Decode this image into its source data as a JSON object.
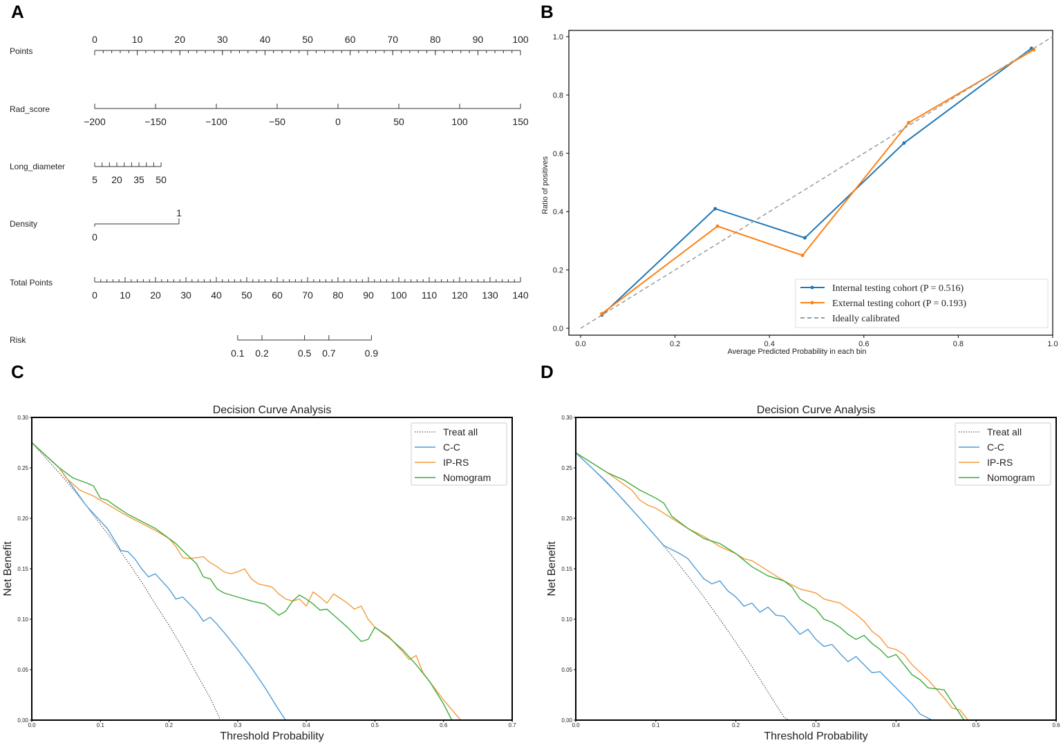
{
  "panels": {
    "a": "A",
    "b": "B",
    "c": "C",
    "d": "D"
  },
  "chart_data": [
    {
      "id": "A",
      "type": "nomogram",
      "rows": [
        {
          "name": "Points",
          "ticks": [
            {
              "label": "0",
              "v": 0
            },
            {
              "label": "10",
              "v": 10
            },
            {
              "label": "20",
              "v": 20
            },
            {
              "label": "30",
              "v": 30
            },
            {
              "label": "40",
              "v": 40
            },
            {
              "label": "50",
              "v": 50
            },
            {
              "label": "60",
              "v": 60
            },
            {
              "label": "70",
              "v": 70
            },
            {
              "label": "80",
              "v": 80
            },
            {
              "label": "90",
              "v": 90
            },
            {
              "label": "100",
              "v": 100
            }
          ],
          "range": [
            0,
            100
          ],
          "minor": 2,
          "labels_above": true
        },
        {
          "name": "Rad_score",
          "ticks": [
            {
              "label": "−200",
              "v": -200
            },
            {
              "label": "−150",
              "v": -150
            },
            {
              "label": "−100",
              "v": -100
            },
            {
              "label": "−50",
              "v": -50
            },
            {
              "label": "0",
              "v": 0
            },
            {
              "label": "50",
              "v": 50
            },
            {
              "label": "100",
              "v": 100
            },
            {
              "label": "150",
              "v": 150
            }
          ],
          "range": [
            -200,
            150
          ],
          "points_range": [
            0,
            100
          ]
        },
        {
          "name": "Long_diameter",
          "ticks": [
            {
              "label": "5",
              "v": 5
            },
            {
              "label": "20",
              "v": 20
            },
            {
              "label": "35",
              "v": 35
            },
            {
              "label": "50",
              "v": 50
            }
          ],
          "minor_values": [
            5,
            10,
            15,
            20,
            25,
            30,
            35,
            40,
            45,
            50
          ],
          "range": [
            5,
            50
          ],
          "points_range": [
            0,
            15.6
          ]
        },
        {
          "name": "Density",
          "ticks": [
            {
              "label": "0",
              "v": 0,
              "below": true
            },
            {
              "label": "1",
              "v": 1,
              "below": false
            }
          ],
          "range": [
            0,
            1
          ],
          "points_range": [
            0,
            19.8
          ]
        },
        {
          "name": "Total Points",
          "ticks": [
            {
              "label": "0",
              "v": 0
            },
            {
              "label": "10",
              "v": 10
            },
            {
              "label": "20",
              "v": 20
            },
            {
              "label": "30",
              "v": 30
            },
            {
              "label": "40",
              "v": 40
            },
            {
              "label": "50",
              "v": 50
            },
            {
              "label": "60",
              "v": 60
            },
            {
              "label": "70",
              "v": 70
            },
            {
              "label": "80",
              "v": 80
            },
            {
              "label": "90",
              "v": 90
            },
            {
              "label": "100",
              "v": 100
            },
            {
              "label": "110",
              "v": 110
            },
            {
              "label": "120",
              "v": 120
            },
            {
              "label": "130",
              "v": 130
            },
            {
              "label": "140",
              "v": 140
            }
          ],
          "range": [
            0,
            140
          ],
          "minor": 2
        },
        {
          "name": "Risk",
          "ticks": [
            {
              "label": "0.1",
              "v": 47
            },
            {
              "label": "0.2",
              "v": 55
            },
            {
              "label": "0.5",
              "v": 69
            },
            {
              "label": "0.7",
              "v": 77
            },
            {
              "label": "0.9",
              "v": 91
            }
          ],
          "range": [
            0,
            140
          ],
          "on_total_scale": true
        }
      ]
    },
    {
      "id": "B",
      "type": "line",
      "title": "",
      "xlabel": "Average Predicted Probability in each bin",
      "ylabel": "Ratio of positives",
      "xlim": [
        0,
        1.0
      ],
      "ylim": [
        0,
        1.0
      ],
      "xticks": [
        "0.0",
        "0.2",
        "0.4",
        "0.6",
        "0.8",
        "1.0"
      ],
      "yticks": [
        "0.0",
        "0.2",
        "0.4",
        "0.6",
        "0.8",
        "1.0"
      ],
      "legend_position": "lower-right",
      "series": [
        {
          "name": "Internal testing cohort (P = 0.516)",
          "color": "#1f77b4",
          "marker": true,
          "x": [
            0.045,
            0.285,
            0.475,
            0.685,
            0.955
          ],
          "y": [
            0.045,
            0.41,
            0.31,
            0.635,
            0.96
          ]
        },
        {
          "name": "External testing cohort (P = 0.193)",
          "color": "#ff7f0e",
          "marker": true,
          "x": [
            0.045,
            0.29,
            0.47,
            0.695,
            0.96
          ],
          "y": [
            0.05,
            0.35,
            0.25,
            0.705,
            0.955
          ]
        },
        {
          "name": "Ideally calibrated",
          "color": "#999999",
          "dashed": true,
          "x": [
            0,
            1
          ],
          "y": [
            0,
            1
          ]
        }
      ]
    },
    {
      "id": "C",
      "type": "line",
      "title": "Decision Curve Analysis",
      "xlabel": "Threshold Probability",
      "ylabel": "Net Benefit",
      "xlim": [
        0,
        0.7
      ],
      "ylim": [
        0,
        0.3
      ],
      "xticks": [
        "0.0",
        "0.1",
        "0.2",
        "0.3",
        "0.4",
        "0.5",
        "0.6",
        "0.7"
      ],
      "yticks": [
        "0.00",
        "0.05",
        "0.10",
        "0.15",
        "0.20",
        "0.25",
        "0.30"
      ],
      "legend_position": "top-right",
      "series": [
        {
          "name": "Treat all",
          "color": "#333333",
          "dotted": true,
          "x": [
            0,
            0.02,
            0.04,
            0.06,
            0.08,
            0.1,
            0.12,
            0.14,
            0.16,
            0.18,
            0.2,
            0.22,
            0.24,
            0.26,
            0.275
          ],
          "y": [
            0.275,
            0.26,
            0.245,
            0.229,
            0.212,
            0.194,
            0.176,
            0.157,
            0.137,
            0.115,
            0.094,
            0.071,
            0.046,
            0.022,
            0.0
          ]
        },
        {
          "name": "C-C",
          "color": "#4c9bd6",
          "x": [
            0,
            0.04,
            0.08,
            0.11,
            0.13,
            0.14,
            0.15,
            0.16,
            0.17,
            0.18,
            0.2,
            0.21,
            0.22,
            0.24,
            0.25,
            0.26,
            0.27,
            0.28,
            0.3,
            0.32,
            0.34,
            0.36,
            0.37
          ],
          "y": [
            0.275,
            0.25,
            0.212,
            0.19,
            0.168,
            0.167,
            0.16,
            0.15,
            0.142,
            0.145,
            0.13,
            0.12,
            0.122,
            0.108,
            0.098,
            0.102,
            0.095,
            0.087,
            0.07,
            0.052,
            0.032,
            0.01,
            0.0
          ]
        },
        {
          "name": "IP-RS",
          "color": "#f39a3a",
          "x": [
            0,
            0.04,
            0.05,
            0.07,
            0.09,
            0.1,
            0.12,
            0.14,
            0.16,
            0.18,
            0.2,
            0.21,
            0.22,
            0.23,
            0.25,
            0.26,
            0.27,
            0.28,
            0.29,
            0.3,
            0.31,
            0.32,
            0.33,
            0.35,
            0.36,
            0.37,
            0.38,
            0.39,
            0.4,
            0.41,
            0.42,
            0.43,
            0.44,
            0.46,
            0.47,
            0.48,
            0.49,
            0.5,
            0.52,
            0.54,
            0.55,
            0.56,
            0.57,
            0.6,
            0.625
          ],
          "y": [
            0.275,
            0.25,
            0.24,
            0.228,
            0.222,
            0.218,
            0.21,
            0.202,
            0.195,
            0.188,
            0.18,
            0.172,
            0.161,
            0.16,
            0.162,
            0.156,
            0.152,
            0.147,
            0.145,
            0.147,
            0.15,
            0.14,
            0.135,
            0.132,
            0.125,
            0.12,
            0.118,
            0.12,
            0.113,
            0.127,
            0.122,
            0.116,
            0.125,
            0.116,
            0.11,
            0.113,
            0.1,
            0.092,
            0.083,
            0.068,
            0.06,
            0.064,
            0.047,
            0.02,
            0.0
          ]
        },
        {
          "name": "Nomogram",
          "color": "#3bab3b",
          "x": [
            0,
            0.04,
            0.06,
            0.08,
            0.09,
            0.1,
            0.11,
            0.12,
            0.14,
            0.16,
            0.18,
            0.2,
            0.21,
            0.22,
            0.24,
            0.25,
            0.26,
            0.27,
            0.28,
            0.3,
            0.32,
            0.34,
            0.36,
            0.37,
            0.38,
            0.39,
            0.4,
            0.41,
            0.42,
            0.43,
            0.44,
            0.46,
            0.48,
            0.49,
            0.5,
            0.52,
            0.54,
            0.56,
            0.58,
            0.6,
            0.612
          ],
          "y": [
            0.275,
            0.25,
            0.24,
            0.235,
            0.232,
            0.22,
            0.218,
            0.213,
            0.204,
            0.197,
            0.19,
            0.18,
            0.175,
            0.168,
            0.155,
            0.142,
            0.14,
            0.13,
            0.126,
            0.122,
            0.118,
            0.115,
            0.104,
            0.108,
            0.118,
            0.124,
            0.12,
            0.115,
            0.109,
            0.11,
            0.104,
            0.092,
            0.078,
            0.08,
            0.092,
            0.082,
            0.07,
            0.055,
            0.038,
            0.016,
            0.0
          ]
        }
      ]
    },
    {
      "id": "D",
      "type": "line",
      "title": "Decision Curve Analysis",
      "xlabel": "Threshold Probability",
      "ylabel": "Net Benefit",
      "xlim": [
        0,
        0.6
      ],
      "ylim": [
        0,
        0.3
      ],
      "xticks": [
        "0.0",
        "0.1",
        "0.2",
        "0.3",
        "0.4",
        "0.5",
        "0.6"
      ],
      "yticks": [
        "0.00",
        "0.05",
        "0.10",
        "0.15",
        "0.20",
        "0.25",
        "0.30"
      ],
      "legend_position": "top-right",
      "series": [
        {
          "name": "Treat all",
          "color": "#333333",
          "dotted": true,
          "x": [
            0,
            0.02,
            0.04,
            0.06,
            0.08,
            0.1,
            0.12,
            0.14,
            0.16,
            0.18,
            0.2,
            0.22,
            0.24,
            0.26,
            0.266
          ],
          "y": [
            0.265,
            0.25,
            0.234,
            0.218,
            0.2,
            0.182,
            0.163,
            0.143,
            0.122,
            0.1,
            0.077,
            0.053,
            0.028,
            0.003,
            0.0
          ]
        },
        {
          "name": "C-C",
          "color": "#4c9bd6",
          "x": [
            0,
            0.04,
            0.08,
            0.11,
            0.13,
            0.14,
            0.15,
            0.16,
            0.17,
            0.18,
            0.19,
            0.2,
            0.21,
            0.22,
            0.23,
            0.24,
            0.25,
            0.26,
            0.27,
            0.28,
            0.29,
            0.3,
            0.31,
            0.32,
            0.33,
            0.34,
            0.35,
            0.36,
            0.37,
            0.38,
            0.39,
            0.4,
            0.41,
            0.42,
            0.43,
            0.445
          ],
          "y": [
            0.265,
            0.235,
            0.2,
            0.173,
            0.165,
            0.16,
            0.15,
            0.14,
            0.135,
            0.138,
            0.128,
            0.122,
            0.113,
            0.116,
            0.107,
            0.112,
            0.104,
            0.103,
            0.094,
            0.085,
            0.09,
            0.08,
            0.073,
            0.075,
            0.066,
            0.058,
            0.063,
            0.055,
            0.047,
            0.048,
            0.04,
            0.032,
            0.024,
            0.016,
            0.006,
            0.0
          ]
        },
        {
          "name": "IP-RS",
          "color": "#f39a3a",
          "x": [
            0,
            0.04,
            0.07,
            0.08,
            0.09,
            0.1,
            0.12,
            0.14,
            0.16,
            0.18,
            0.2,
            0.21,
            0.22,
            0.24,
            0.26,
            0.27,
            0.28,
            0.3,
            0.31,
            0.33,
            0.35,
            0.36,
            0.37,
            0.38,
            0.39,
            0.4,
            0.41,
            0.42,
            0.44,
            0.46,
            0.47,
            0.48,
            0.49
          ],
          "y": [
            0.265,
            0.245,
            0.228,
            0.218,
            0.213,
            0.21,
            0.2,
            0.19,
            0.182,
            0.172,
            0.165,
            0.16,
            0.158,
            0.148,
            0.138,
            0.134,
            0.13,
            0.126,
            0.12,
            0.116,
            0.105,
            0.098,
            0.088,
            0.082,
            0.072,
            0.07,
            0.065,
            0.055,
            0.04,
            0.022,
            0.012,
            0.01,
            0.0
          ]
        },
        {
          "name": "Nomogram",
          "color": "#3bab3b",
          "x": [
            0,
            0.04,
            0.06,
            0.08,
            0.1,
            0.11,
            0.12,
            0.14,
            0.16,
            0.18,
            0.2,
            0.22,
            0.24,
            0.26,
            0.27,
            0.28,
            0.29,
            0.3,
            0.31,
            0.32,
            0.33,
            0.34,
            0.35,
            0.36,
            0.37,
            0.38,
            0.39,
            0.4,
            0.41,
            0.42,
            0.43,
            0.44,
            0.46,
            0.47,
            0.475,
            0.485
          ],
          "y": [
            0.265,
            0.245,
            0.238,
            0.228,
            0.22,
            0.215,
            0.202,
            0.19,
            0.18,
            0.175,
            0.165,
            0.152,
            0.143,
            0.138,
            0.132,
            0.12,
            0.115,
            0.11,
            0.1,
            0.097,
            0.092,
            0.085,
            0.08,
            0.084,
            0.076,
            0.07,
            0.062,
            0.065,
            0.055,
            0.045,
            0.04,
            0.032,
            0.03,
            0.018,
            0.012,
            0.0
          ]
        }
      ]
    }
  ]
}
